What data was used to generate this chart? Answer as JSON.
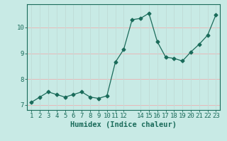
{
  "x": [
    1,
    2,
    3,
    4,
    5,
    6,
    7,
    8,
    9,
    10,
    11,
    12,
    13,
    14,
    15,
    16,
    17,
    18,
    19,
    20,
    21,
    22,
    23
  ],
  "y": [
    7.1,
    7.3,
    7.5,
    7.4,
    7.3,
    7.4,
    7.5,
    7.3,
    7.25,
    7.35,
    8.65,
    9.15,
    10.3,
    10.35,
    10.55,
    9.45,
    8.85,
    8.8,
    8.7,
    9.05,
    9.35,
    9.7,
    10.5
  ],
  "line_color": "#1a6b5a",
  "marker": "D",
  "marker_size": 2.5,
  "bg_color": "#c8eae5",
  "grid_color_h": "#e8b8b8",
  "grid_color_v": "#c0ddd8",
  "xlabel": "Humidex (Indice chaleur)",
  "xlim": [
    0.5,
    23.5
  ],
  "ylim": [
    6.8,
    10.9
  ],
  "yticks": [
    7,
    8,
    9,
    10
  ],
  "xticks": [
    1,
    2,
    3,
    4,
    5,
    6,
    7,
    8,
    9,
    10,
    11,
    12,
    14,
    15,
    16,
    17,
    18,
    19,
    20,
    21,
    22,
    23
  ],
  "label_fontsize": 7.5,
  "tick_fontsize": 6.5,
  "spine_color": "#1a6b5a",
  "tick_color": "#1a6b5a"
}
